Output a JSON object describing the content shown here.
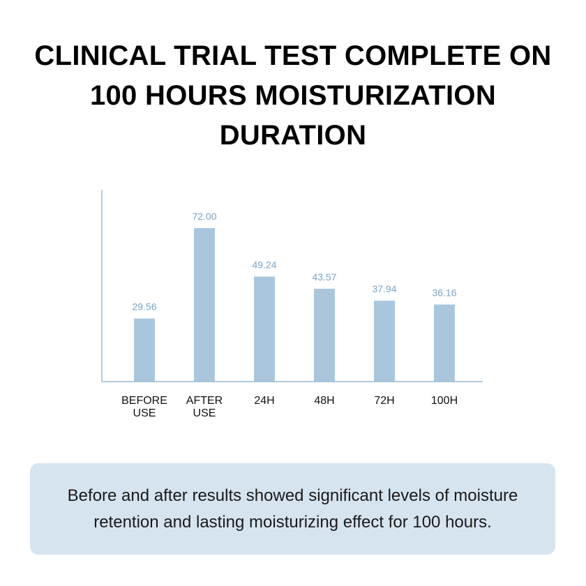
{
  "title": {
    "line1": "CLINICAL TRIAL TEST COMPLETE ON",
    "line2": "100 HOURS MOISTURIZATION",
    "line3": "DURATION"
  },
  "chart_data": {
    "type": "bar",
    "categories": [
      [
        "BEFORE",
        "USE"
      ],
      [
        "AFTER",
        "USE"
      ],
      [
        "24H"
      ],
      [
        "48H"
      ],
      [
        "72H"
      ],
      [
        "100H"
      ]
    ],
    "values": [
      29.56,
      72.0,
      49.24,
      43.57,
      37.94,
      36.16
    ],
    "value_labels": [
      "29.56",
      "72.00",
      "49.24",
      "43.57",
      "37.94",
      "36.16"
    ],
    "ylim": [
      0,
      90
    ],
    "grid": false,
    "legend": "none",
    "colors": {
      "bar": "#a9c6dd",
      "value_label": "#7aa3c4",
      "axis": "#9ab9d2",
      "tick_label": "#111111"
    }
  },
  "caption": {
    "text": "Before and after results showed significant levels of moisture retention and lasting moisturizing effect for 100 hours.",
    "background": "#d6e4ef"
  }
}
